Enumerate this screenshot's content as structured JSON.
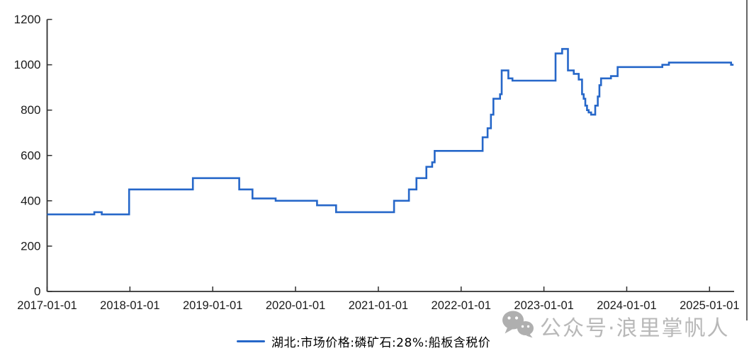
{
  "chart_data": {
    "type": "line",
    "subtype": "step-post",
    "title": "",
    "xlabel": "",
    "ylabel": "",
    "ylim": [
      0,
      1200
    ],
    "yticks": [
      0,
      200,
      400,
      600,
      800,
      1000,
      1200
    ],
    "xticks": [
      2017,
      2018,
      2019,
      2020,
      2021,
      2022,
      2023,
      2024,
      2025
    ],
    "xtick_labels": [
      "2017-01-01",
      "2018-01-01",
      "2019-01-01",
      "2020-01-01",
      "2021-01-01",
      "2022-01-01",
      "2023-01-01",
      "2024-01-01",
      "2025-01-01"
    ],
    "grid": false,
    "legend_position": "bottom-center",
    "series": [
      {
        "name": "湖北:市场价格:磷矿石:28%:船板含税价",
        "color": "#2667c9",
        "end_x": 2025.29,
        "steps": [
          [
            2017.0,
            340
          ],
          [
            2017.57,
            350
          ],
          [
            2017.66,
            340
          ],
          [
            2017.99,
            450
          ],
          [
            2018.76,
            500
          ],
          [
            2019.32,
            450
          ],
          [
            2019.48,
            410
          ],
          [
            2019.76,
            400
          ],
          [
            2020.26,
            380
          ],
          [
            2020.49,
            350
          ],
          [
            2021.19,
            400
          ],
          [
            2021.37,
            450
          ],
          [
            2021.46,
            500
          ],
          [
            2021.58,
            550
          ],
          [
            2021.65,
            570
          ],
          [
            2021.68,
            620
          ],
          [
            2022.26,
            680
          ],
          [
            2022.32,
            720
          ],
          [
            2022.36,
            780
          ],
          [
            2022.39,
            850
          ],
          [
            2022.47,
            870
          ],
          [
            2022.49,
            975
          ],
          [
            2022.57,
            940
          ],
          [
            2022.62,
            930
          ],
          [
            2023.14,
            1050
          ],
          [
            2023.22,
            1070
          ],
          [
            2023.29,
            975
          ],
          [
            2023.36,
            960
          ],
          [
            2023.42,
            935
          ],
          [
            2023.46,
            870
          ],
          [
            2023.48,
            850
          ],
          [
            2023.5,
            820
          ],
          [
            2023.52,
            800
          ],
          [
            2023.54,
            790
          ],
          [
            2023.57,
            780
          ],
          [
            2023.62,
            820
          ],
          [
            2023.65,
            860
          ],
          [
            2023.67,
            910
          ],
          [
            2023.69,
            940
          ],
          [
            2023.81,
            950
          ],
          [
            2023.89,
            990
          ],
          [
            2024.43,
            1000
          ],
          [
            2024.51,
            1010
          ],
          [
            2025.26,
            1000
          ]
        ]
      }
    ]
  },
  "legend": {
    "label": "湖北:市场价格:磷矿石:28%:船板含税价"
  },
  "watermark": {
    "text": "公众号·浪里掌帆人",
    "icon": "wechat-icon"
  },
  "colors": {
    "line": "#2667c9",
    "axis": "#2f2f2f",
    "tick_text": "#1a1a1a",
    "watermark": "#b3b3b3"
  }
}
